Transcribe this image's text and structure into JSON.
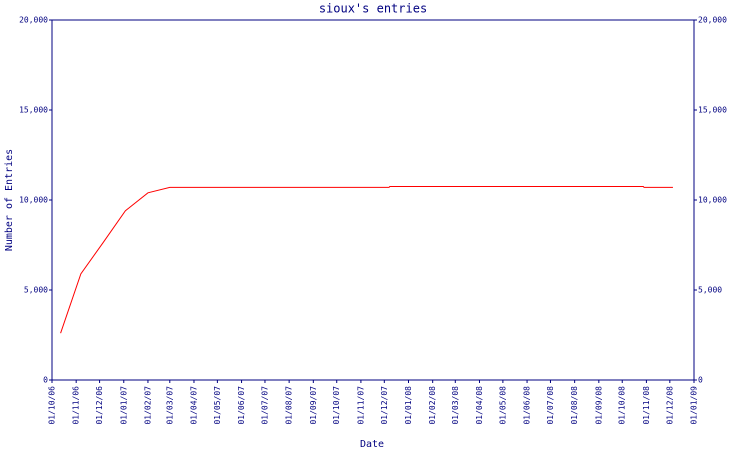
{
  "chart_data": {
    "type": "line",
    "title": "sioux's entries",
    "xlabel": "Date",
    "ylabel": "Number of Entries",
    "x": [
      "12/10/06",
      "07/11/06",
      "05/12/06",
      "03/01/07",
      "01/02/07",
      "01/03/07",
      "07/12/07",
      "08/12/07",
      "28/10/08",
      "29/10/08",
      "05/12/08"
    ],
    "series": [
      {
        "color": "#ff0000",
        "values": [
          2600,
          5900,
          7600,
          9400,
          10400,
          10700,
          10700,
          10750,
          10750,
          10700,
          10700
        ]
      }
    ],
    "xlim": [
      "01/10/06",
      "01/01/09"
    ],
    "xticks": [
      "01/10/06",
      "01/11/06",
      "01/12/06",
      "01/01/07",
      "01/02/07",
      "01/03/07",
      "01/04/07",
      "01/05/07",
      "01/06/07",
      "01/07/07",
      "01/08/07",
      "01/09/07",
      "01/10/07",
      "01/11/07",
      "01/12/07",
      "01/01/08",
      "01/02/08",
      "01/03/08",
      "01/04/08",
      "01/05/08",
      "01/06/08",
      "01/07/08",
      "01/08/08",
      "01/09/08",
      "01/10/08",
      "01/11/08",
      "01/12/08",
      "01/01/09"
    ],
    "ylim": [
      0,
      20000
    ],
    "yticks": [
      0,
      {
        "value": 5000,
        "label": "5,000"
      },
      {
        "value": 10000,
        "label": "10,000"
      },
      {
        "value": 15000,
        "label": "15,000"
      },
      {
        "value": 20000,
        "label": "20,000"
      }
    ],
    "axis_color": "#000080",
    "grid": false
  }
}
